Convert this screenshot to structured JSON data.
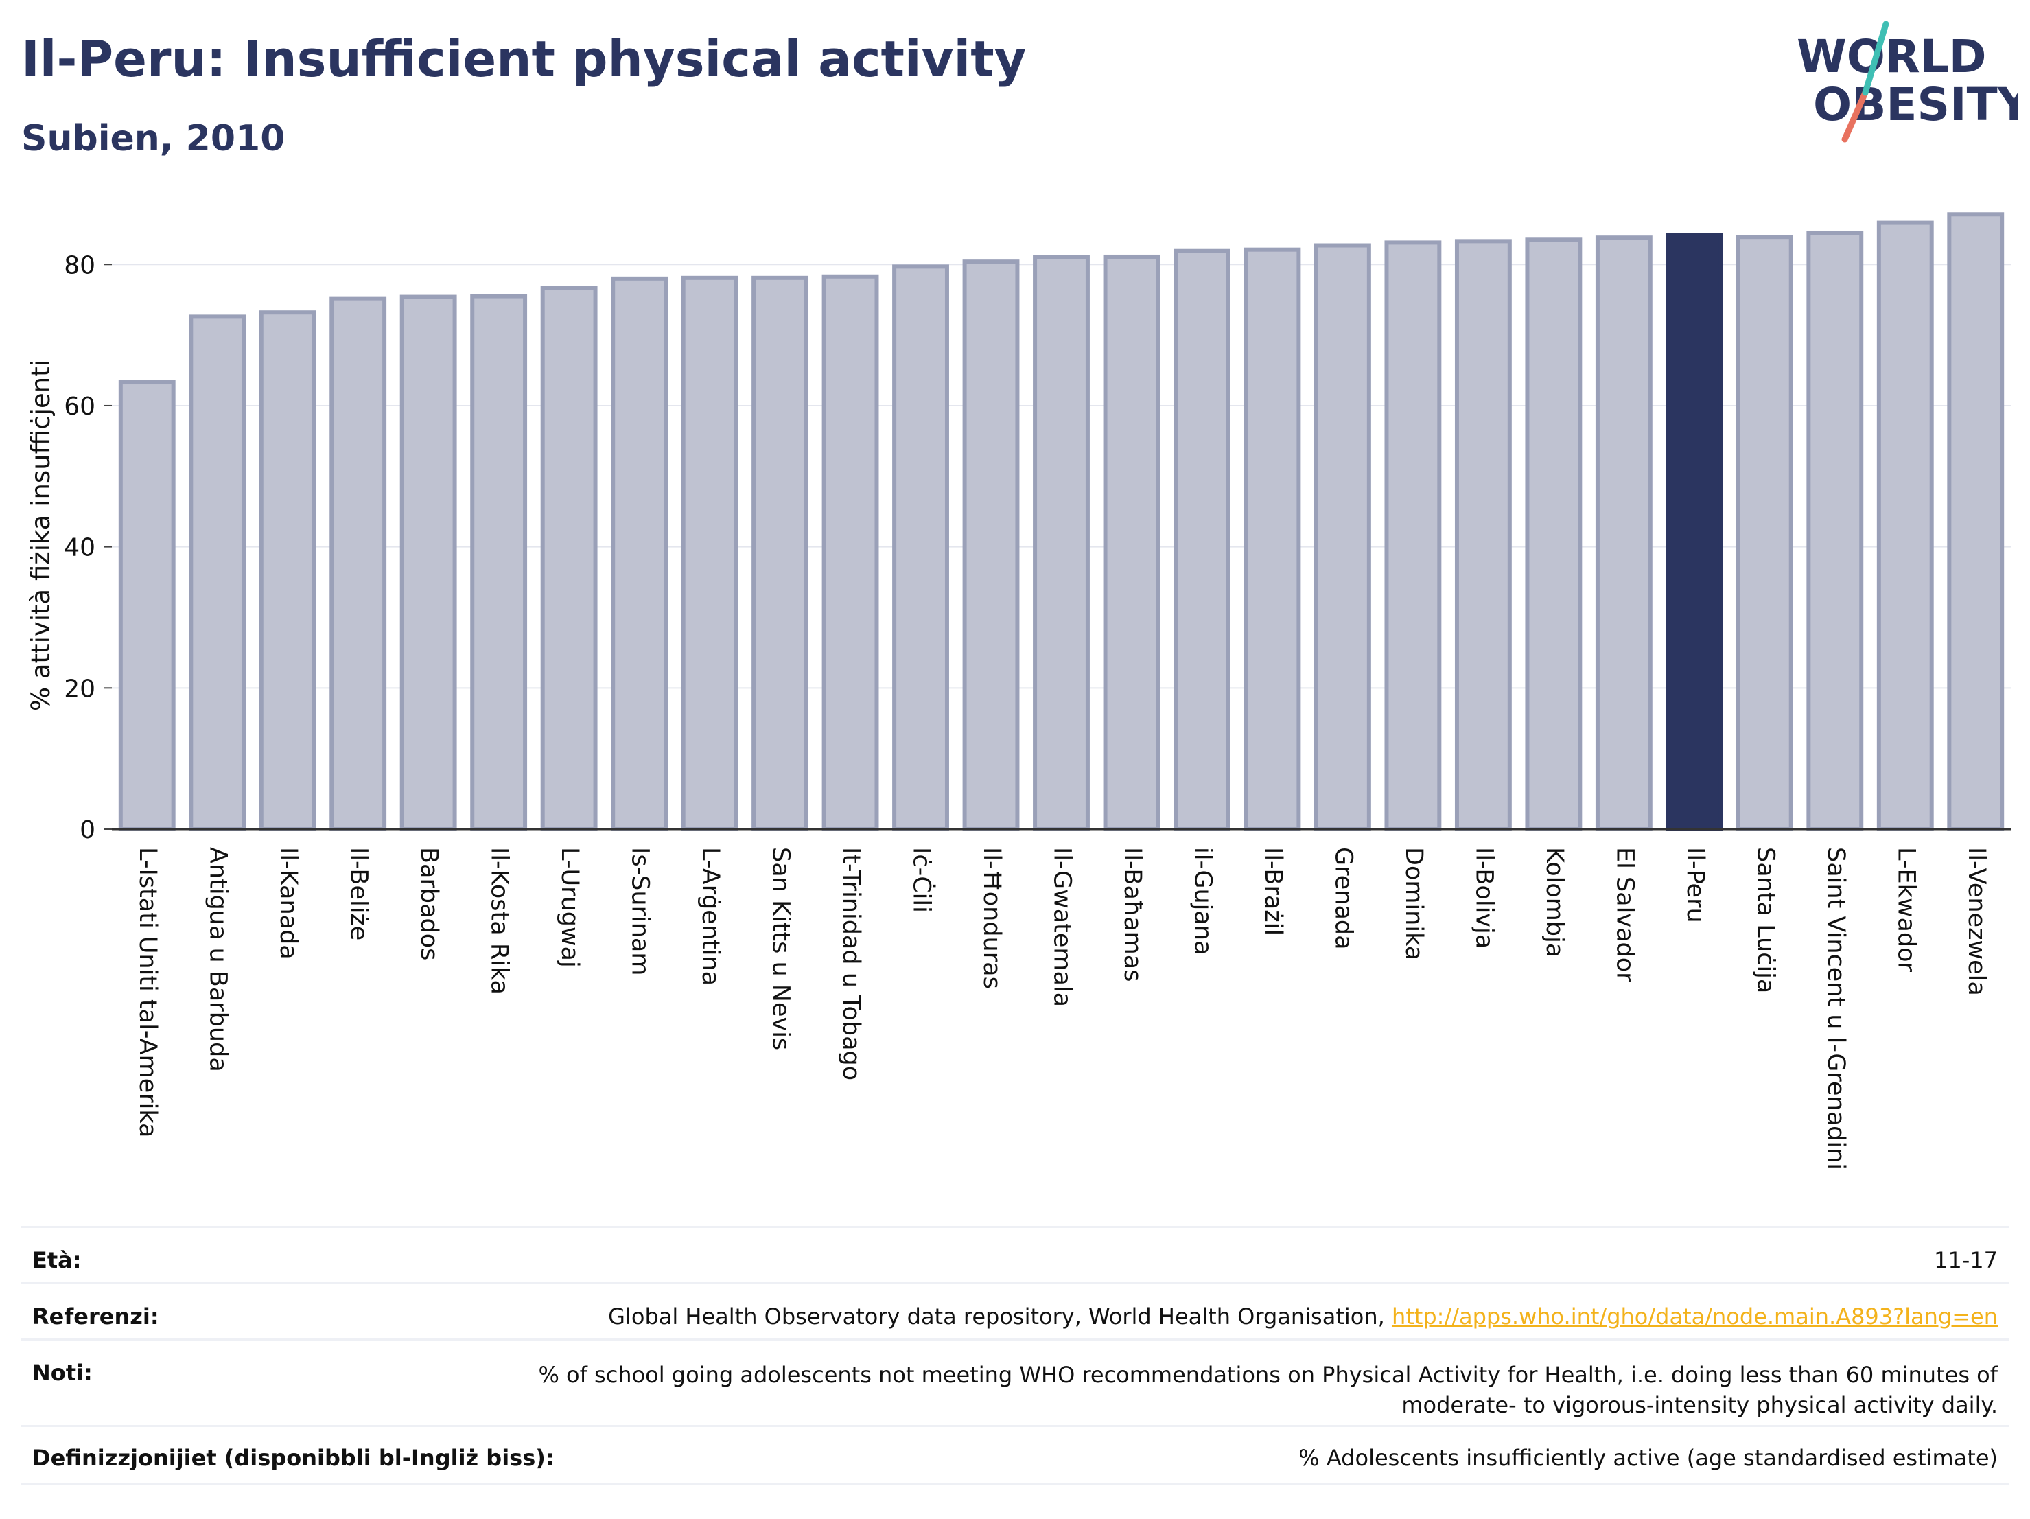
{
  "header": {
    "title": "Il-Peru: Insufficient physical activity",
    "subtitle": "Subien, 2010"
  },
  "logo": {
    "line1": "WORLD",
    "line2": "OBESITY"
  },
  "colors": {
    "highlight": "#2b3560",
    "bar_fill": "#bfc2d1",
    "bar_stroke": "#9aa0b8",
    "title": "#2b3560",
    "logo_teal": "#3fbfb4",
    "logo_red": "#e8725f",
    "link": "#f3b21b"
  },
  "chart_data": {
    "type": "bar",
    "ylabel": "% attività fiżika insuffiċjenti",
    "ylim": [
      0,
      88
    ],
    "yticks": [
      0,
      20,
      40,
      60,
      80
    ],
    "grid": true,
    "highlight": "Il-Peru",
    "categories": [
      "L-Istati Uniti tal-Amerika",
      "Antigua u Barbuda",
      "Il-Kanada",
      "Il-Beliże",
      "Barbados",
      "Il-Kosta Rika",
      "L-Urugwaj",
      "Is-Surinam",
      "L-Arġentina",
      "San Kitts u Nevis",
      "It-Trinidad u Tobago",
      "Iċ-Ċili",
      "Il-Ħonduras",
      "Il-Gwatemala",
      "Il-Baħamas",
      "il-Gujana",
      "Il-Brażil",
      "Grenada",
      "Dominika",
      "Il-Bolivja",
      "Kolombja",
      "El Salvador",
      "Il-Peru",
      "Santa Luċija",
      "Saint Vincent u l-Grenadini",
      "L-Ekwador",
      "Il-Venezwela"
    ],
    "values": [
      63.3,
      72.6,
      73.2,
      75.2,
      75.4,
      75.5,
      76.7,
      78.0,
      78.1,
      78.1,
      78.3,
      79.7,
      80.4,
      81.0,
      81.1,
      81.9,
      82.1,
      82.7,
      83.1,
      83.3,
      83.5,
      83.8,
      84.2,
      83.9,
      84.5,
      85.9,
      87.1
    ]
  },
  "info": {
    "age_label": "Età:",
    "age_value": "11-17",
    "ref_label": "Referenzi:",
    "ref_text": "Global Health Observatory data repository, World Health Organisation, ",
    "ref_link": "http://apps.who.int/gho/data/node.main.A893?lang=en",
    "notes_label": "Noti:",
    "notes_line1": "% of school going adolescents not meeting WHO recommendations on Physical Activity for Health, i.e. doing less than 60 minutes of",
    "notes_line2": "moderate- to vigorous-intensity physical activity daily.",
    "def_label": "Definizzjonijiet (disponibbli bl-Ingliż biss):",
    "def_value": "% Adolescents insufficiently active (age standardised estimate)"
  }
}
